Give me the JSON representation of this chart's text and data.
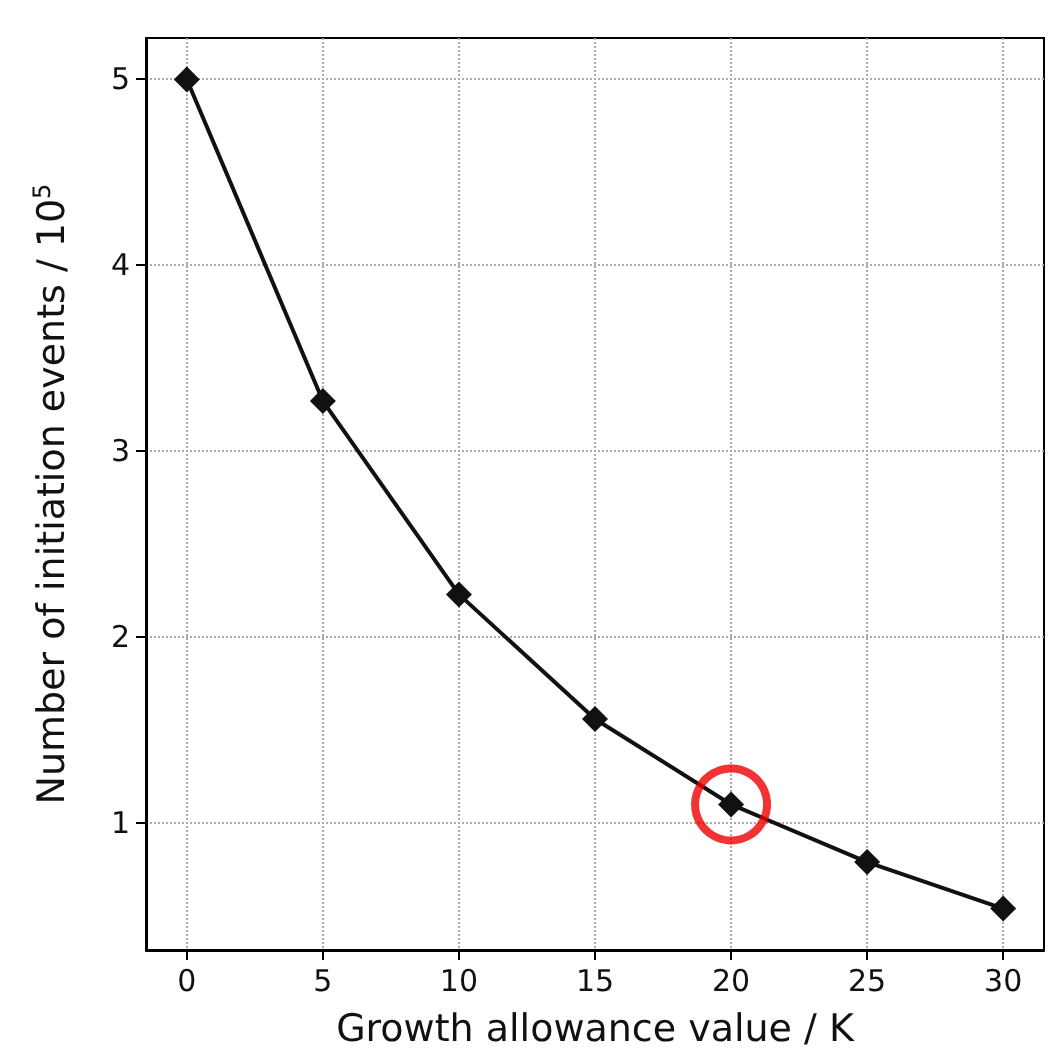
{
  "chart_data": {
    "type": "line",
    "xlabel": "Growth allowance value / K",
    "ylabel": "Number of initiation events / 10$^{5}$",
    "x": [
      0,
      5,
      10,
      15,
      20,
      25,
      30
    ],
    "series": [
      {
        "color": "#111111",
        "values": [
          5.0,
          3.27,
          2.23,
          1.56,
          1.1,
          0.79,
          0.54
        ],
        "marker": "diamond"
      },
      {
        "type": "scatter",
        "color": "#ee0000",
        "x": [
          20
        ],
        "values": [
          1.1
        ],
        "marker": "circle"
      }
    ],
    "xlim": [
      -1.5,
      31.5
    ],
    "ylim": [
      0.317,
      5.223
    ],
    "xticks": [
      0,
      5,
      10,
      15,
      20,
      25,
      30
    ],
    "yticks": [
      1,
      2,
      3,
      4,
      5
    ],
    "grid": true,
    "line_style": "solid"
  }
}
